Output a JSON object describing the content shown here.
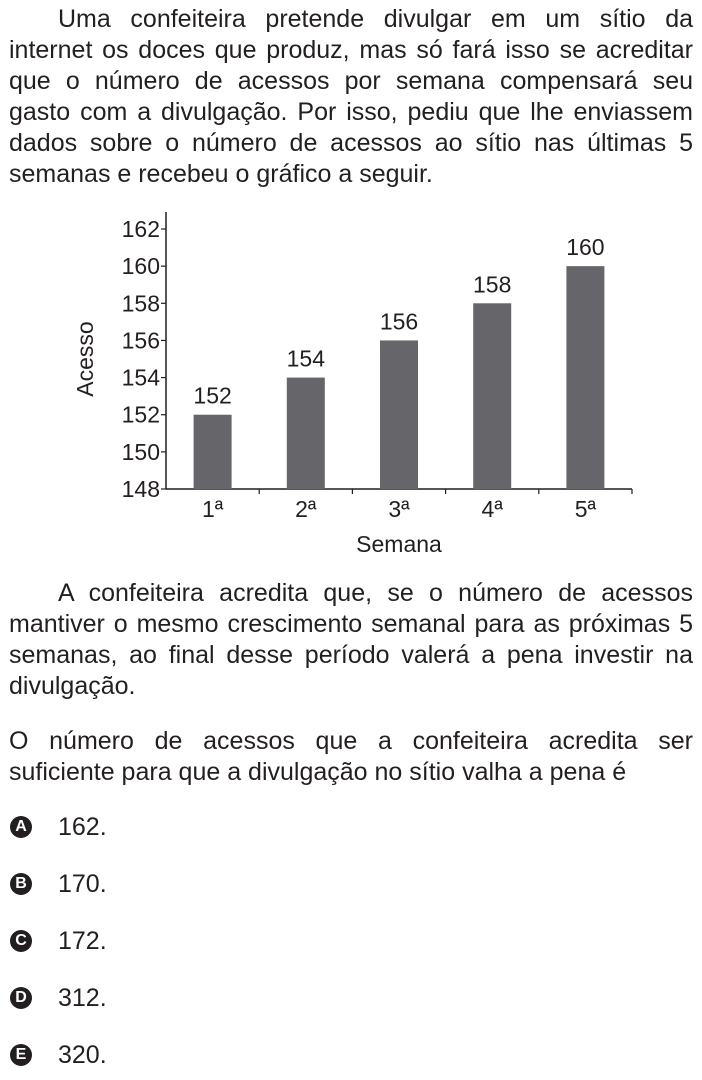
{
  "question": {
    "intro": "Uma confeiteira pretende divulgar em um sítio da internet os doces que produz, mas só fará isso se acreditar que o número de acessos por semana compensará seu gasto com a divulgação. Por isso, pediu que lhe enviassem dados sobre o número de acessos ao sítio nas últimas 5 semanas e recebeu o gráfico a seguir.",
    "belief": "A confeiteira acredita que, se o número de acessos mantiver o mesmo crescimento semanal para as próximas 5 semanas, ao final desse período valerá a pena investir na divulgação.",
    "prompt": "O número de acessos que a confeiteira acredita ser suficiente para que a divulgação no sítio valha a pena é"
  },
  "options": [
    {
      "letter": "A",
      "text": "162."
    },
    {
      "letter": "B",
      "text": "170."
    },
    {
      "letter": "C",
      "text": "172."
    },
    {
      "letter": "D",
      "text": "312."
    },
    {
      "letter": "E",
      "text": "320."
    }
  ],
  "chart_data": {
    "type": "bar",
    "title": "",
    "xlabel": "Semana",
    "ylabel": "Acesso",
    "categories": [
      "1ª",
      "2ª",
      "3ª",
      "4ª",
      "5ª"
    ],
    "values": [
      152,
      154,
      156,
      158,
      160
    ],
    "data_labels": [
      "152",
      "154",
      "156",
      "158",
      "160"
    ],
    "ylim": [
      148,
      162
    ],
    "yticks": [
      148,
      150,
      152,
      154,
      156,
      158,
      160,
      162
    ],
    "bar_color": "#66666a",
    "grid": false,
    "legend": "none"
  }
}
